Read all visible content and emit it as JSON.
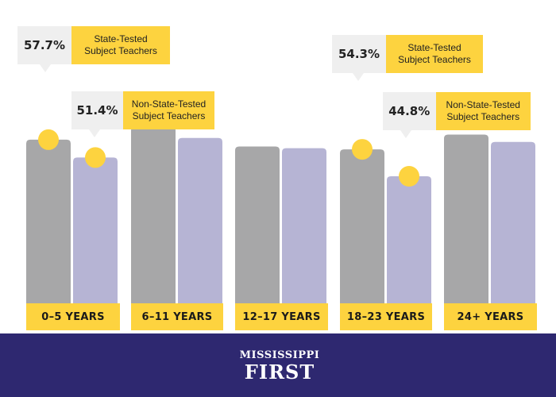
{
  "chart_data": {
    "type": "bar",
    "categories": [
      "0–5 YEARS",
      "6–11 YEARS",
      "12–17 YEARS",
      "18–23 YEARS",
      "24+ YEARS"
    ],
    "series": [
      {
        "name": "State-Tested Subject Teachers",
        "values": [
          57.7,
          62.4,
          55.3,
          54.3,
          59.5
        ]
      },
      {
        "name": "Non-State-Tested Subject Teachers",
        "values": [
          51.4,
          58.3,
          54.7,
          44.8,
          56.9
        ]
      }
    ],
    "ylim": [
      0,
      70
    ],
    "grid": false,
    "highlighted_labels": [
      {
        "category": 0,
        "series": 0,
        "value_label": "57.7%",
        "text_lines": [
          "State-Tested",
          "Subject Teachers"
        ]
      },
      {
        "category": 0,
        "series": 1,
        "value_label": "51.4%",
        "text_lines": [
          "Non-State-Tested",
          "Subject Teachers"
        ]
      },
      {
        "category": 3,
        "series": 0,
        "value_label": "54.3%",
        "text_lines": [
          "State-Tested",
          "Subject Teachers"
        ]
      },
      {
        "category": 3,
        "series": 1,
        "value_label": "44.8%",
        "text_lines": [
          "Non-State-Tested",
          "Subject Teachers"
        ]
      }
    ],
    "colors": {
      "series0": "#a7a7a8",
      "series1": "#b6b4d4",
      "marker": "#fdd33f",
      "label_bg": "#fdd33f",
      "callout_bg": "#efefef"
    }
  },
  "footer": {
    "logo_line1": "MISSISSIPPI",
    "logo_line2": "FIRST",
    "background": "#2e2870"
  }
}
